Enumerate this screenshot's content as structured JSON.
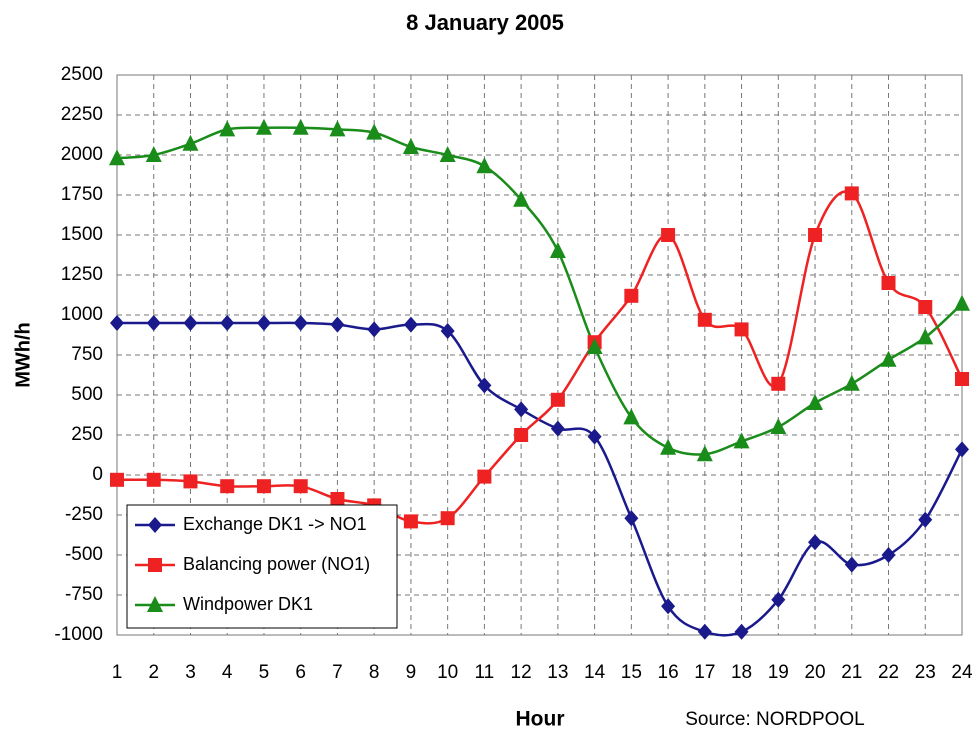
{
  "chart_data": {
    "type": "line",
    "title": "8 January 2005",
    "x_label": "Hour",
    "y_label": "MWh/h",
    "source": "Source: NORDPOOL",
    "x": [
      1,
      2,
      3,
      4,
      5,
      6,
      7,
      8,
      9,
      10,
      11,
      12,
      13,
      14,
      15,
      16,
      17,
      18,
      19,
      20,
      21,
      22,
      23,
      24
    ],
    "xlim": [
      1,
      24
    ],
    "xticks": [
      1,
      2,
      3,
      4,
      5,
      6,
      7,
      8,
      9,
      10,
      11,
      12,
      13,
      14,
      15,
      16,
      17,
      18,
      19,
      20,
      21,
      22,
      23,
      24
    ],
    "ylim": [
      -1000,
      2500
    ],
    "yticks": [
      -1000,
      -750,
      -500,
      -250,
      0,
      250,
      500,
      750,
      1000,
      1250,
      1500,
      1750,
      2000,
      2250,
      2500
    ],
    "grid": true,
    "legend": "lower left",
    "series": [
      {
        "name": "Exchange DK1 -> NO1",
        "color": "#1a1a8c",
        "marker": "diamond",
        "values": [
          950,
          950,
          950,
          950,
          950,
          950,
          940,
          910,
          940,
          900,
          560,
          410,
          290,
          240,
          -270,
          -820,
          -980,
          -980,
          -780,
          -420,
          -560,
          -500,
          -280,
          160
        ]
      },
      {
        "name": "Balancing power (NO1)",
        "color": "#ee2222",
        "marker": "square",
        "values": [
          -30,
          -30,
          -40,
          -70,
          -70,
          -70,
          -150,
          -190,
          -290,
          -270,
          -10,
          250,
          470,
          830,
          1120,
          1500,
          970,
          910,
          570,
          1500,
          1760,
          1200,
          1050,
          600
        ]
      },
      {
        "name": "Windpower DK1",
        "color": "#1a8c1a",
        "marker": "triangle",
        "values": [
          1980,
          2000,
          2070,
          2160,
          2170,
          2170,
          2160,
          2140,
          2050,
          2000,
          1930,
          1720,
          1400,
          800,
          360,
          170,
          130,
          210,
          300,
          450,
          570,
          720,
          860,
          1070
        ]
      }
    ]
  }
}
